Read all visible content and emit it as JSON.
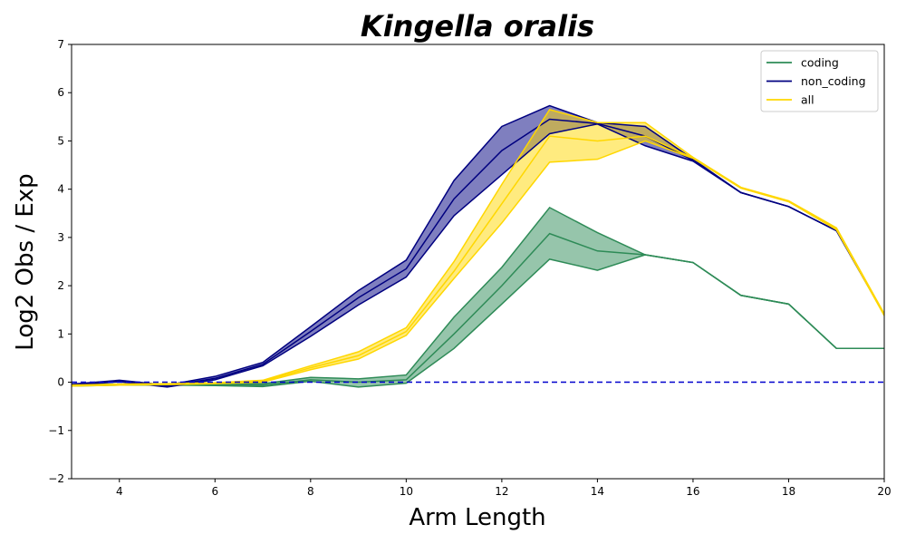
{
  "chart_data": {
    "type": "line",
    "title": "Kingella oralis",
    "xlabel": "Arm Length",
    "ylabel": "Log2 Obs / Exp",
    "xlim": [
      3,
      20
    ],
    "ylim": [
      -2,
      7
    ],
    "xticks": [
      4,
      6,
      8,
      10,
      12,
      14,
      16,
      18,
      20
    ],
    "yticks": [
      -2,
      -1,
      0,
      1,
      2,
      3,
      4,
      5,
      6,
      7
    ],
    "ytick_labels": [
      "−2",
      "−1",
      "0",
      "1",
      "2",
      "3",
      "4",
      "5",
      "6",
      "7"
    ],
    "grid": false,
    "legend_position": "top-right",
    "reference_line": {
      "y": 0,
      "style": "dashed",
      "color": "#0000cc"
    },
    "series": [
      {
        "name": "coding",
        "color": "#2e8b57",
        "fill_opacity": 0.5,
        "x": [
          3,
          4,
          5,
          6,
          7,
          8,
          9,
          10,
          11,
          12,
          13,
          14,
          15,
          16,
          17,
          18,
          19,
          20
        ],
        "y": [
          -0.06,
          -0.05,
          -0.05,
          -0.05,
          -0.06,
          0.05,
          0.0,
          0.05,
          1.0,
          2.0,
          3.08,
          2.72,
          2.64,
          2.48,
          1.8,
          1.62,
          0.7,
          0.7
        ],
        "lower": [
          -0.08,
          -0.06,
          -0.06,
          -0.07,
          -0.09,
          0.02,
          -0.1,
          -0.02,
          0.7,
          1.62,
          2.55,
          2.32,
          2.64,
          2.48,
          1.8,
          1.62,
          0.7,
          0.7
        ],
        "upper": [
          -0.04,
          -0.04,
          -0.04,
          -0.03,
          -0.03,
          0.1,
          0.07,
          0.15,
          1.35,
          2.38,
          3.62,
          3.1,
          2.64,
          2.48,
          1.8,
          1.62,
          0.7,
          0.7
        ]
      },
      {
        "name": "non_coding",
        "color": "#000080",
        "fill_opacity": 0.5,
        "x": [
          3,
          4,
          5,
          6,
          7,
          8,
          9,
          10,
          11,
          12,
          13,
          14,
          15,
          16,
          17,
          18,
          19,
          20
        ],
        "y": [
          -0.05,
          0.02,
          -0.08,
          0.08,
          0.37,
          1.05,
          1.75,
          2.35,
          3.8,
          4.8,
          5.45,
          5.36,
          5.1,
          4.6,
          3.93,
          3.64,
          3.14,
          1.4
        ],
        "lower": [
          -0.06,
          0.01,
          -0.1,
          0.05,
          0.34,
          0.95,
          1.6,
          2.18,
          3.45,
          4.3,
          5.15,
          5.35,
          4.9,
          4.58,
          3.93,
          3.64,
          3.14,
          1.4
        ],
        "upper": [
          -0.04,
          0.04,
          -0.06,
          0.12,
          0.41,
          1.15,
          1.9,
          2.53,
          4.18,
          5.3,
          5.73,
          5.38,
          5.3,
          4.62,
          3.93,
          3.64,
          3.14,
          1.4
        ]
      },
      {
        "name": "all",
        "color": "#ffd700",
        "fill_opacity": 0.5,
        "x": [
          3,
          4,
          5,
          6,
          7,
          8,
          9,
          10,
          11,
          12,
          13,
          14,
          15,
          16,
          17,
          18,
          19,
          20
        ],
        "y": [
          -0.07,
          -0.05,
          -0.04,
          -0.02,
          0.02,
          0.3,
          0.55,
          1.05,
          2.3,
          3.7,
          5.1,
          5.0,
          5.1,
          4.65,
          4.03,
          3.75,
          3.18,
          1.4
        ],
        "lower": [
          -0.08,
          -0.06,
          -0.05,
          -0.03,
          0.0,
          0.26,
          0.48,
          0.97,
          2.15,
          3.3,
          4.56,
          4.62,
          5.0,
          4.64,
          4.02,
          3.74,
          3.16,
          1.38
        ],
        "upper": [
          -0.06,
          -0.04,
          -0.03,
          -0.01,
          0.04,
          0.34,
          0.63,
          1.13,
          2.5,
          4.1,
          5.65,
          5.38,
          5.38,
          4.66,
          4.04,
          3.76,
          3.2,
          1.42
        ]
      }
    ]
  }
}
